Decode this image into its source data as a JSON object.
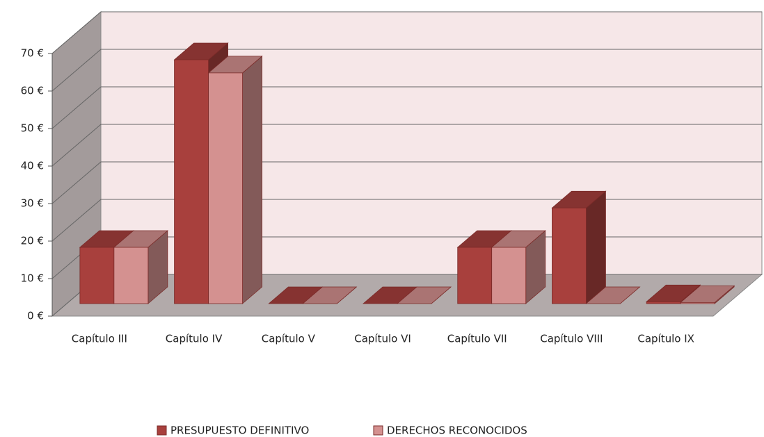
{
  "chart_data": {
    "type": "bar3d",
    "categories": [
      "Capítulo III",
      "Capítulo IV",
      "Capítulo V",
      "Capítulo VI",
      "Capítulo VII",
      "Capítulo VIII",
      "Capítulo IX"
    ],
    "series": [
      {
        "name": "PRESUPUESTO DEFINITIVO",
        "color": "#a8403d",
        "values": [
          15,
          65,
          0,
          0,
          15,
          25.5,
          0.5
        ]
      },
      {
        "name": "DERECHOS RECONOCIDOS",
        "color": "#d49190",
        "values": [
          15,
          61.5,
          0,
          0,
          15,
          0,
          0.3
        ]
      }
    ],
    "ylim": [
      0,
      70
    ],
    "yticks": [
      {
        "value": 0,
        "label": "0 €"
      },
      {
        "value": 10,
        "label": "10 €"
      },
      {
        "value": 20,
        "label": "20 €"
      },
      {
        "value": 30,
        "label": "30 €"
      },
      {
        "value": 40,
        "label": "40 €"
      },
      {
        "value": 50,
        "label": "50 €"
      },
      {
        "value": 60,
        "label": "60 €"
      },
      {
        "value": 70,
        "label": "70 €"
      }
    ],
    "grid": true,
    "legend": "bottom"
  }
}
